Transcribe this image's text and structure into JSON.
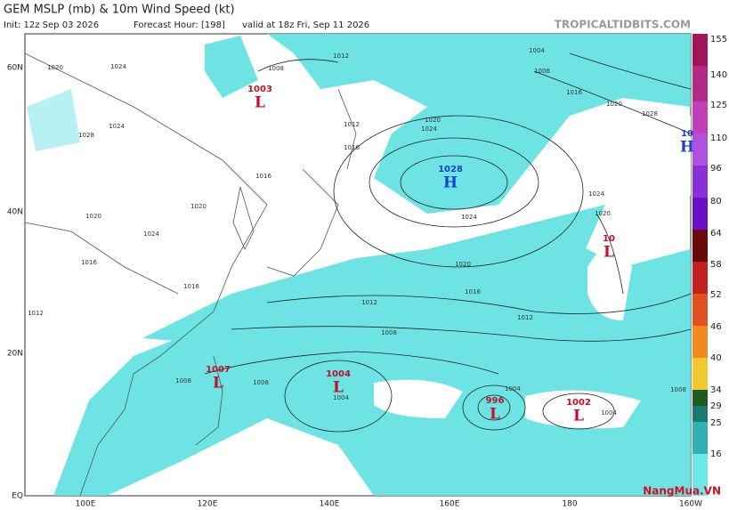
{
  "header": {
    "title": "GEM MSLP (mb) & 10m Wind Speed (kt)",
    "init": "Init: 12z Sep 03 2026",
    "forecast_hour": "Forecast Hour: [198]",
    "valid": "valid at 18z Fri, Sep 11 2026",
    "source": "TROPICALTIDBITS.COM"
  },
  "colorbar": {
    "labels": [
      "155",
      "140",
      "125",
      "110",
      "96",
      "80",
      "64",
      "58",
      "52",
      "46",
      "40",
      "34",
      "29",
      "25",
      "16"
    ]
  },
  "axes": {
    "lat": [
      "60N",
      "40N",
      "20N",
      "EQ"
    ],
    "lon": [
      "100E",
      "120E",
      "140E",
      "160E",
      "180",
      "160W"
    ]
  },
  "centers": [
    {
      "value": "1003",
      "kind": "L"
    },
    {
      "value": "1028",
      "kind": "H"
    },
    {
      "value": "1007",
      "kind": "L"
    },
    {
      "value": "1004",
      "kind": "L"
    },
    {
      "value": "996",
      "kind": "L"
    },
    {
      "value": "1002",
      "kind": "L"
    },
    {
      "value": "10",
      "kind": "L"
    },
    {
      "value": "10",
      "kind": "H"
    }
  ],
  "isobar_labels": [
    "1020",
    "1024",
    "1008",
    "1012",
    "1004",
    "1008",
    "1016",
    "1020",
    "1028",
    "1024",
    "1024",
    "1020",
    "1016",
    "1012",
    "1012",
    "1008",
    "1008",
    "1008",
    "1004",
    "1004",
    "1004",
    "1024",
    "1020",
    "1016",
    "1020",
    "1024",
    "1016",
    "1012",
    "1008",
    "1012",
    "1016",
    "1020",
    "1024",
    "1028",
    "1020",
    "1016"
  ],
  "watermark": "NangMua.VN"
}
